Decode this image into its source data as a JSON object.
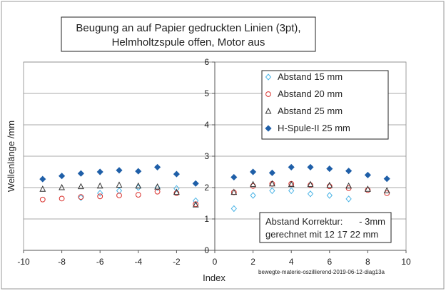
{
  "chart_data": {
    "type": "scatter",
    "title": [
      "Beugung an auf Papier gedruckten Linien (3pt),",
      "Helmholtzspule offen, Motor aus"
    ],
    "xlabel": "Index",
    "ylabel": "Wellenlänge /mm",
    "xlim": [
      -10,
      10
    ],
    "ylim": [
      0,
      6
    ],
    "xticks": [
      "-10",
      "-8",
      "-6",
      "-4",
      "-2",
      "0",
      "2",
      "4",
      "6",
      "8",
      "10"
    ],
    "yticks": [
      "0",
      "1",
      "2",
      "3",
      "4",
      "5",
      "6"
    ],
    "grid": "horizontal",
    "legend_position": "top-right",
    "series": [
      {
        "name": "Abstand 15 mm",
        "marker": "diamond-open",
        "color": "#4bb4e6",
        "x": [
          -9,
          -8,
          -7,
          -6,
          -5,
          -4,
          -3,
          -2,
          -1,
          1,
          2,
          3,
          4,
          5,
          6,
          7,
          8,
          9
        ],
        "y": [
          null,
          null,
          1.68,
          1.82,
          1.9,
          2.0,
          2.0,
          1.97,
          1.58,
          1.33,
          1.75,
          1.9,
          1.9,
          1.8,
          1.75,
          1.64,
          null,
          null
        ]
      },
      {
        "name": "Abstand 20 mm",
        "marker": "circle-open",
        "color": "#d9302c",
        "x": [
          -9,
          -8,
          -7,
          -6,
          -5,
          -4,
          -3,
          -2,
          -1,
          1,
          2,
          3,
          4,
          5,
          6,
          7,
          8,
          9
        ],
        "y": [
          1.62,
          1.65,
          1.7,
          1.72,
          1.75,
          1.77,
          1.87,
          1.82,
          1.47,
          1.85,
          2.05,
          2.12,
          2.12,
          2.08,
          2.04,
          1.98,
          1.92,
          1.82
        ]
      },
      {
        "name": "Abstand 25 mm",
        "marker": "triangle-open",
        "color": "#333333",
        "x": [
          -9,
          -8,
          -7,
          -6,
          -5,
          -4,
          -3,
          -2,
          -1,
          1,
          2,
          3,
          4,
          5,
          6,
          7,
          8,
          9
        ],
        "y": [
          1.95,
          2.0,
          2.03,
          2.05,
          2.08,
          2.05,
          2.02,
          1.85,
          1.45,
          1.85,
          2.1,
          2.12,
          2.1,
          2.1,
          2.07,
          2.05,
          1.95,
          1.9
        ]
      },
      {
        "name": "H-Spule-II 25 mm",
        "marker": "diamond-filled",
        "color": "#1f5fa8",
        "x": [
          -9,
          -8,
          -7,
          -6,
          -5,
          -4,
          -3,
          -2,
          -1,
          1,
          2,
          3,
          4,
          5,
          6,
          7,
          8,
          9
        ],
        "y": [
          2.27,
          2.37,
          2.45,
          2.5,
          2.55,
          2.52,
          2.65,
          2.43,
          2.13,
          2.33,
          2.5,
          2.47,
          2.65,
          2.65,
          2.6,
          2.53,
          2.4,
          2.28
        ]
      }
    ],
    "annotation": {
      "line1_label": "Abstand Korrektur:",
      "line1_value": "- 3mm",
      "line2": "gerechnet mit 12   17   22 mm"
    },
    "watermark": "bewegte-materie-oszillierend-2019-06-12-diag13a"
  }
}
